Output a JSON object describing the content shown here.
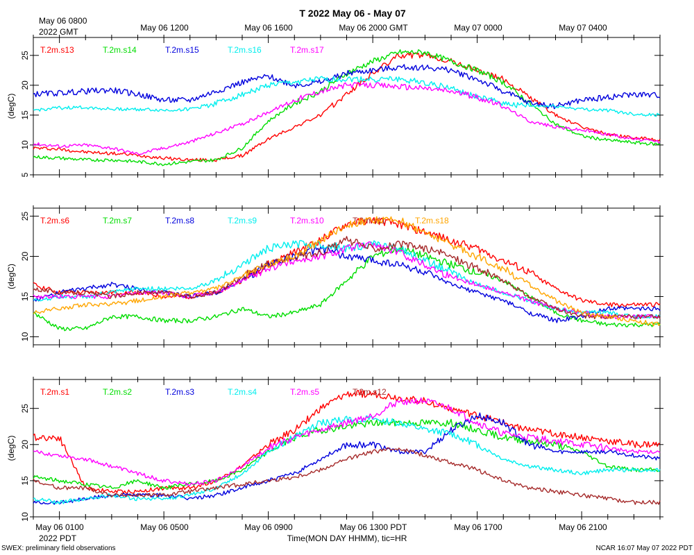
{
  "title": "T 2022 May 06 - May 07",
  "top_axis": {
    "first_tick": [
      "May 06 0800",
      "2022 GMT"
    ],
    "ticks": [
      "May 06 1200",
      "May 06 1600",
      "May 06 2000 GMT",
      "May 07 0000",
      "May 07 0400"
    ]
  },
  "bottom_axis": {
    "ticks": [
      "May 06 0100",
      "May 06 0500",
      "May 06 0900",
      "May 06 1300 PDT",
      "May 06 1700",
      "May 06 2100"
    ],
    "year_label": "2022 PDT",
    "xlabel": "Time(MON DAY HHMM), tic=HR"
  },
  "footer": {
    "left": "SWEX: preliminary field observations",
    "right": "NCAR 16:07 May 07 2022 PDT"
  },
  "colors": {
    "red": "#ff0000",
    "green": "#00dd00",
    "blue": "#0000dd",
    "cyan": "#00eeee",
    "magenta": "#ff00ff",
    "brown": "#a52a2a",
    "orange": "#ffa500"
  },
  "chart_data": [
    {
      "type": "line",
      "ylabel": "(degC)",
      "ylim": [
        5,
        28
      ],
      "yticks": [
        5,
        10,
        15,
        20,
        25
      ],
      "xlim_hours_pdt": [
        0,
        24
      ],
      "series": [
        {
          "name": "T.2m.s13",
          "color": "red",
          "x": [
            0,
            1,
            2,
            3,
            4,
            5,
            6,
            7,
            8,
            9,
            10,
            11,
            12,
            13,
            14,
            15,
            16,
            17,
            18,
            19,
            20,
            21,
            22,
            23,
            24
          ],
          "values": [
            9.5,
            9.3,
            8.8,
            8.6,
            8.3,
            7.8,
            7.5,
            7.5,
            8.2,
            11,
            13,
            15,
            18.5,
            22,
            25,
            25,
            24,
            22.5,
            21,
            18,
            15,
            13,
            11.8,
            11.2,
            10.8
          ]
        },
        {
          "name": "T.2m.s14",
          "color": "green",
          "x": [
            0,
            1,
            2,
            3,
            4,
            5,
            6,
            7,
            8,
            9,
            10,
            11,
            12,
            13,
            14,
            15,
            16,
            17,
            18,
            19,
            20,
            21,
            22,
            23,
            24
          ],
          "values": [
            8,
            7.8,
            7.5,
            7.5,
            7.2,
            6.8,
            7.2,
            7.5,
            9.5,
            14,
            17,
            19,
            22,
            24,
            25.5,
            25.5,
            24,
            22.5,
            20.5,
            17,
            13.5,
            11.5,
            10.8,
            10.4,
            10.1
          ]
        },
        {
          "name": "T.2m.s15",
          "color": "blue",
          "x": [
            0,
            1,
            2,
            3,
            4,
            5,
            6,
            7,
            8,
            9,
            10,
            11,
            12,
            13,
            14,
            15,
            16,
            17,
            18,
            19,
            20,
            21,
            22,
            23,
            24
          ],
          "values": [
            18.5,
            18.7,
            19,
            19.2,
            18.5,
            17.5,
            17.5,
            19,
            20.5,
            21.5,
            20,
            20.5,
            22,
            22.5,
            23,
            23,
            22.5,
            21,
            19,
            17,
            16.5,
            17.5,
            18,
            18.5,
            18.3
          ]
        },
        {
          "name": "T.2m.s16",
          "color": "cyan",
          "x": [
            0,
            1,
            2,
            3,
            4,
            5,
            6,
            7,
            8,
            9,
            10,
            11,
            12,
            13,
            14,
            15,
            16,
            17,
            18,
            19,
            20,
            21,
            22,
            23,
            24
          ],
          "values": [
            15.8,
            16.2,
            16.3,
            16,
            16,
            15.8,
            16,
            17,
            18.5,
            20,
            20.5,
            21,
            21,
            21,
            21,
            20.5,
            19.5,
            18,
            17,
            16.5,
            16.5,
            16,
            15.8,
            15.2,
            15
          ]
        },
        {
          "name": "T.2m.s17",
          "color": "magenta",
          "x": [
            0,
            1,
            2,
            3,
            4,
            5,
            6,
            7,
            8,
            9,
            10,
            11,
            12,
            13,
            14,
            15,
            16,
            17,
            18,
            19,
            20,
            21,
            22,
            23,
            24
          ],
          "values": [
            10.2,
            9.8,
            10,
            9.5,
            8.5,
            9.5,
            10.5,
            12,
            13.5,
            15.5,
            17.5,
            19,
            20,
            20,
            19.8,
            19.5,
            19,
            18,
            16.5,
            14,
            13,
            12.5,
            11.8,
            11,
            10.5
          ]
        }
      ]
    },
    {
      "type": "line",
      "ylabel": "(degC)",
      "ylim": [
        9,
        26
      ],
      "yticks": [
        10,
        15,
        20,
        25
      ],
      "xlim_hours_pdt": [
        0,
        24
      ],
      "series": [
        {
          "name": "T.2m.s6",
          "color": "red",
          "x": [
            0,
            1,
            2,
            3,
            4,
            5,
            6,
            7,
            8,
            9,
            10,
            11,
            12,
            13,
            14,
            15,
            16,
            17,
            18,
            19,
            20,
            21,
            22,
            23,
            24
          ],
          "values": [
            16.5,
            15.5,
            15.5,
            15.5,
            15.5,
            15,
            15,
            15.5,
            17,
            19,
            20.5,
            22,
            24,
            24.5,
            24,
            23,
            22,
            21,
            19.5,
            18,
            16,
            14.5,
            14,
            14,
            14
          ]
        },
        {
          "name": "T.2m.s7",
          "color": "green",
          "x": [
            0,
            1,
            2,
            3,
            4,
            5,
            6,
            7,
            8,
            9,
            10,
            11,
            12,
            13,
            14,
            15,
            16,
            17,
            18,
            19,
            20,
            21,
            22,
            23,
            24
          ],
          "values": [
            13,
            11,
            11,
            12.5,
            12.5,
            12,
            12,
            12.5,
            13.5,
            12.5,
            13,
            14,
            17,
            20,
            21,
            20,
            19,
            18,
            17,
            15,
            13,
            12,
            11.5,
            11.5,
            11.5
          ]
        },
        {
          "name": "T.2m.s8",
          "color": "blue",
          "x": [
            0,
            1,
            2,
            3,
            4,
            5,
            6,
            7,
            8,
            9,
            10,
            11,
            12,
            13,
            14,
            15,
            16,
            17,
            18,
            19,
            20,
            21,
            22,
            23,
            24
          ],
          "values": [
            14.5,
            15.5,
            16,
            16.5,
            16,
            15.5,
            15,
            15.5,
            17,
            19,
            20,
            21,
            20,
            19.5,
            19,
            18,
            16.5,
            15.5,
            14.5,
            13,
            12,
            12.5,
            13.5,
            13.5,
            13.5
          ]
        },
        {
          "name": "T.2m.s9",
          "color": "cyan",
          "x": [
            0,
            1,
            2,
            3,
            4,
            5,
            6,
            7,
            8,
            9,
            10,
            11,
            12,
            13,
            14,
            15,
            16,
            17,
            18,
            19,
            20,
            21,
            22,
            23,
            24
          ],
          "values": [
            14.5,
            15,
            15,
            15.5,
            16,
            16,
            16,
            17,
            19,
            21,
            21.5,
            21.5,
            21,
            21.5,
            21,
            19.5,
            18,
            16.5,
            15.5,
            14.5,
            13.5,
            13,
            13,
            12.5,
            12.5
          ]
        },
        {
          "name": "T.2m.s10",
          "color": "magenta",
          "x": [
            0,
            1,
            2,
            3,
            4,
            5,
            6,
            7,
            8,
            9,
            10,
            11,
            12,
            13,
            14,
            15,
            16,
            17,
            18,
            19,
            20,
            21,
            22,
            23,
            24
          ],
          "values": [
            15,
            15,
            15,
            15,
            15.5,
            15.5,
            15,
            15.5,
            17,
            18.5,
            19.5,
            20,
            21,
            21.5,
            20.5,
            19,
            17.5,
            16.5,
            15.5,
            14.5,
            13.5,
            13,
            12.5,
            12.5,
            12.5
          ]
        },
        {
          "name": "T.2m.s11",
          "color": "brown",
          "x": [
            0,
            1,
            2,
            3,
            4,
            5,
            6,
            7,
            8,
            9,
            10,
            11,
            12,
            13,
            14,
            15,
            16,
            17,
            18,
            19,
            20,
            21,
            22,
            23,
            24
          ],
          "values": [
            16,
            15.5,
            15.5,
            15,
            15.5,
            15.5,
            15,
            15.5,
            17.5,
            19,
            20,
            20.5,
            22,
            21,
            21.5,
            21,
            20,
            18.5,
            17,
            15,
            13.5,
            12.5,
            12.5,
            12.5,
            12.5
          ]
        },
        {
          "name": "T.2m.s18",
          "color": "orange",
          "x": [
            0,
            1,
            2,
            3,
            4,
            5,
            6,
            7,
            8,
            9,
            10,
            11,
            12,
            13,
            14,
            15,
            16,
            17,
            18,
            19,
            20,
            21,
            22,
            23,
            24
          ],
          "values": [
            13,
            13.5,
            14,
            14,
            14.5,
            15,
            15.5,
            16,
            17.5,
            19,
            20,
            22,
            24,
            24.5,
            24.5,
            23,
            21.5,
            20,
            18.5,
            16.5,
            14.5,
            13,
            12.5,
            12,
            11.5
          ]
        }
      ]
    },
    {
      "type": "line",
      "ylabel": "(degC)",
      "ylim": [
        10,
        29
      ],
      "yticks": [
        10,
        15,
        20,
        25
      ],
      "xlim_hours_pdt": [
        0,
        24
      ],
      "series": [
        {
          "name": "T.2m.s1",
          "color": "red",
          "x": [
            0,
            1,
            2,
            3,
            4,
            5,
            6,
            7,
            8,
            9,
            10,
            11,
            12,
            13,
            14,
            15,
            16,
            17,
            18,
            19,
            20,
            21,
            22,
            23,
            24
          ],
          "values": [
            21,
            21,
            14,
            13.5,
            13.5,
            14,
            14,
            15,
            17,
            20,
            22,
            25,
            27,
            27,
            26.5,
            26,
            25,
            24,
            23,
            22,
            21.5,
            21,
            20.5,
            20,
            20
          ]
        },
        {
          "name": "T.2m.s2",
          "color": "green",
          "x": [
            0,
            1,
            2,
            3,
            4,
            5,
            6,
            7,
            8,
            9,
            10,
            11,
            12,
            13,
            14,
            15,
            16,
            17,
            18,
            19,
            20,
            21,
            22,
            23,
            24
          ],
          "values": [
            15.5,
            15,
            14.5,
            14,
            15,
            14,
            14.5,
            15,
            16.5,
            19,
            21,
            22,
            22.5,
            23,
            23,
            23,
            23,
            22,
            21,
            20.5,
            20,
            19,
            17,
            16.5,
            16.5
          ]
        },
        {
          "name": "T.2m.s3",
          "color": "blue",
          "x": [
            0,
            1,
            2,
            3,
            4,
            5,
            6,
            7,
            8,
            9,
            10,
            11,
            12,
            13,
            14,
            15,
            16,
            17,
            18,
            19,
            20,
            21,
            22,
            23,
            24
          ],
          "values": [
            12,
            12,
            12.5,
            13,
            13,
            13,
            12.5,
            13,
            14,
            15,
            16,
            18,
            20,
            20,
            19,
            19,
            22,
            24,
            23,
            20,
            19,
            19,
            19,
            18.5,
            18
          ]
        },
        {
          "name": "T.2m.s4",
          "color": "cyan",
          "x": [
            0,
            1,
            2,
            3,
            4,
            5,
            6,
            7,
            8,
            9,
            10,
            11,
            12,
            13,
            14,
            15,
            16,
            17,
            18,
            19,
            20,
            21,
            22,
            23,
            24
          ],
          "values": [
            12.5,
            12,
            12.5,
            13,
            12.5,
            12.5,
            13,
            14,
            16,
            19,
            21,
            23,
            23.5,
            23.5,
            23,
            22,
            21.5,
            20,
            18,
            17,
            16.5,
            16,
            16.5,
            16.5,
            16.5
          ]
        },
        {
          "name": "T.2m.s5",
          "color": "magenta",
          "x": [
            0,
            1,
            2,
            3,
            4,
            5,
            6,
            7,
            8,
            9,
            10,
            11,
            12,
            13,
            14,
            15,
            16,
            17,
            18,
            19,
            20,
            21,
            22,
            23,
            24
          ],
          "values": [
            19,
            18.5,
            18,
            17,
            16,
            15,
            14.5,
            15,
            17,
            19.5,
            21,
            22,
            23,
            24,
            26,
            26,
            25,
            23,
            21.5,
            21,
            20.5,
            20,
            19.5,
            19,
            19
          ]
        },
        {
          "name": "T.2m.s12",
          "color": "brown",
          "x": [
            0,
            1,
            2,
            3,
            4,
            5,
            6,
            7,
            8,
            9,
            10,
            11,
            12,
            13,
            14,
            15,
            16,
            17,
            18,
            19,
            20,
            21,
            22,
            23,
            24
          ],
          "values": [
            15,
            14,
            14,
            13,
            13,
            13,
            13.5,
            14,
            14.5,
            15,
            15.5,
            16.5,
            18,
            19,
            19.5,
            18.5,
            17.5,
            16.5,
            15,
            14,
            13.5,
            13,
            12.5,
            12,
            12
          ]
        }
      ]
    }
  ]
}
